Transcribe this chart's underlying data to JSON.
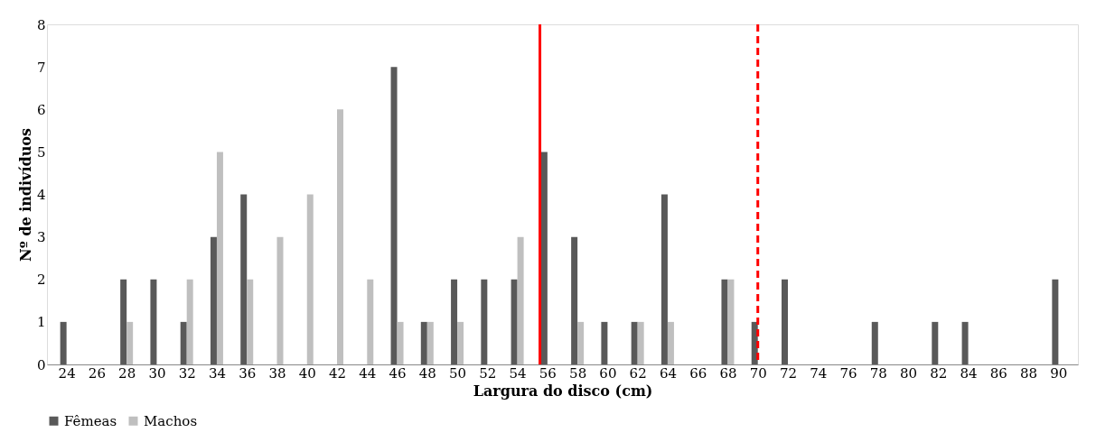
{
  "chart_data": {
    "type": "bar",
    "xlabel": "Largura do disco (cm)",
    "ylabel": "Nº de indivíduos",
    "x": [
      24,
      26,
      28,
      30,
      32,
      34,
      36,
      38,
      40,
      42,
      44,
      46,
      48,
      50,
      52,
      54,
      56,
      58,
      60,
      62,
      64,
      66,
      68,
      70,
      72,
      74,
      76,
      78,
      80,
      82,
      84,
      86,
      88,
      90
    ],
    "xlim": [
      23,
      91
    ],
    "xticks": [
      24,
      26,
      28,
      30,
      32,
      34,
      36,
      38,
      40,
      42,
      44,
      46,
      48,
      50,
      52,
      54,
      56,
      58,
      60,
      62,
      64,
      66,
      68,
      70,
      72,
      74,
      76,
      78,
      80,
      82,
      84,
      86,
      88,
      90
    ],
    "ylim": [
      0,
      8
    ],
    "yticks": [
      0,
      1,
      2,
      3,
      4,
      5,
      6,
      7,
      8
    ],
    "grid": false,
    "legend": "bottom",
    "series": [
      {
        "name": "Fêmeas",
        "color": "#595959",
        "values": [
          1,
          0,
          2,
          2,
          1,
          3,
          4,
          0,
          0,
          0,
          0,
          7,
          1,
          2,
          2,
          2,
          5,
          3,
          1,
          1,
          4,
          0,
          2,
          1,
          2,
          0,
          0,
          1,
          0,
          1,
          1,
          0,
          0,
          2
        ]
      },
      {
        "name": "Machos",
        "color": "#bfbfbf",
        "values": [
          0,
          0,
          1,
          0,
          2,
          5,
          2,
          3,
          4,
          6,
          2,
          1,
          1,
          1,
          0,
          3,
          0,
          1,
          0,
          1,
          1,
          0,
          2,
          0,
          0,
          0,
          0,
          0,
          0,
          0,
          0,
          0,
          0,
          0
        ]
      }
    ],
    "ref_lines": [
      {
        "axis": "x",
        "value": 55.5,
        "color": "#ff0000",
        "line_style": "solid"
      },
      {
        "axis": "x",
        "value": 70,
        "color": "#ff0000",
        "line_style": "dashed"
      }
    ]
  }
}
